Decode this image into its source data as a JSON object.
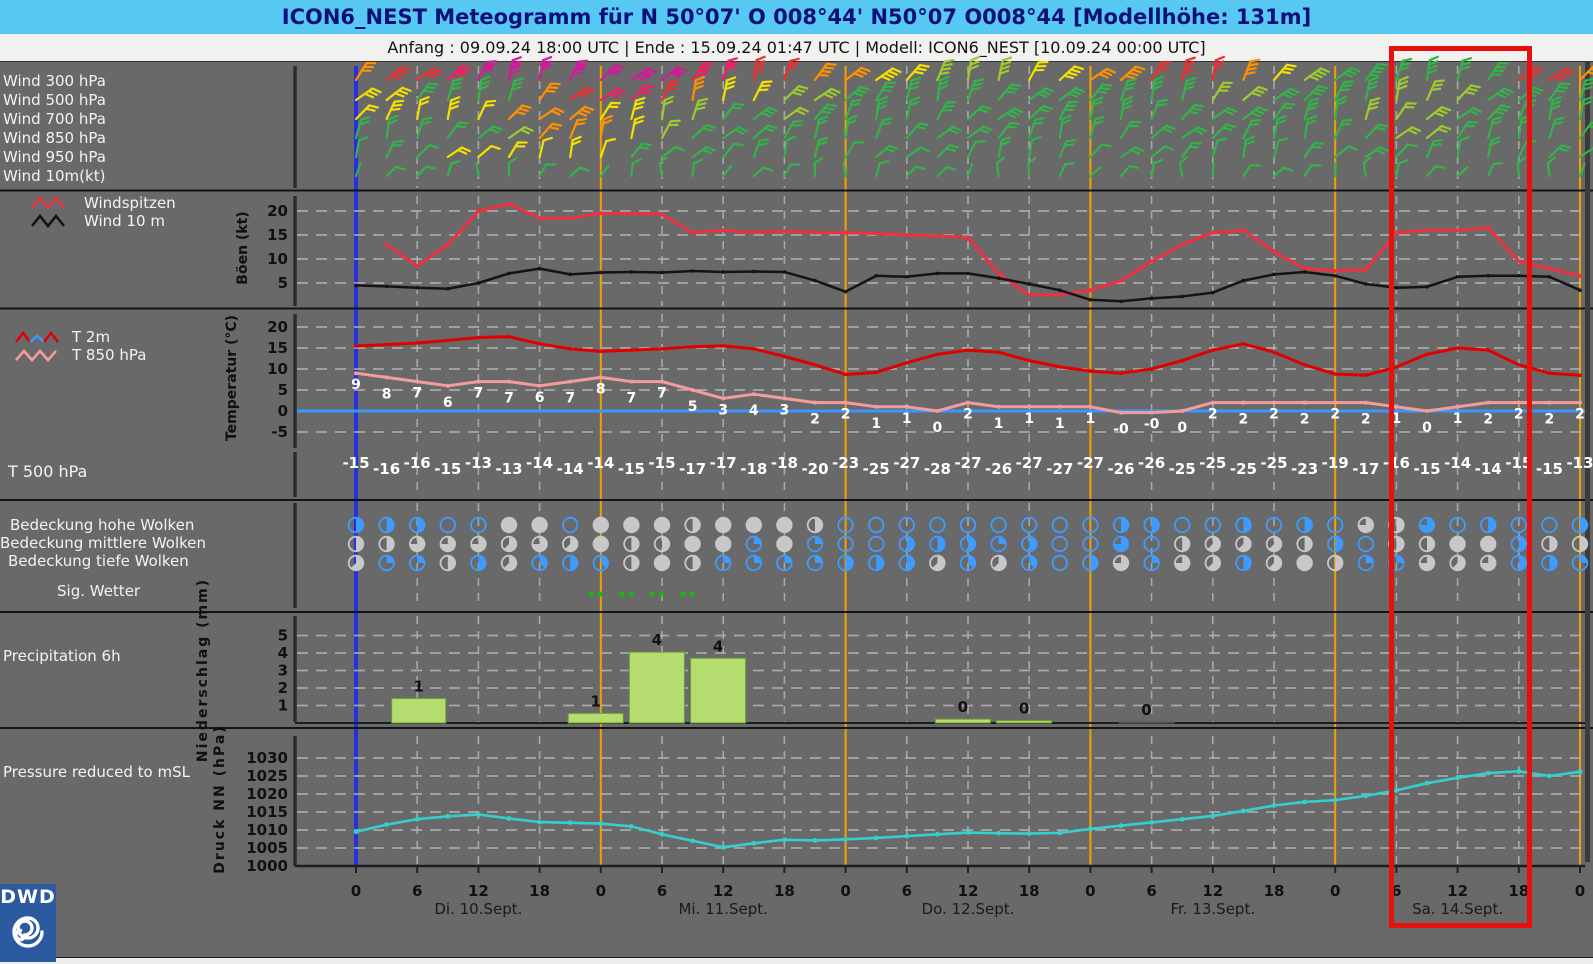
{
  "title": "ICON6_NEST Meteogramm für N 50°07' O 008°44' N50°07 O008°44   [Modellhöhe: 131m]",
  "subtitle": "Anfang : 09.09.24 18:00 UTC | Ende : 15.09.24 01:47 UTC | Modell: ICON6_NEST [10.09.24 00:00 UTC]",
  "panels": {
    "wind_rows": [
      "Wind 300 hPa",
      "Wind 500 hPa",
      "Wind 700 hPa",
      "Wind 850 hPa",
      "Wind 950 hPa",
      "Wind 10m(kt)"
    ],
    "gust_legend": {
      "windspitzen": "Windspitzen",
      "wind10m": "Wind 10 m"
    },
    "temp_legend": {
      "t2m": "T 2m",
      "t850": "T 850 hPa"
    },
    "t500_label": "T 500 hPa",
    "cloud_labels": [
      "Bedeckung hohe Wolken",
      "Bedeckung mittlere Wolken",
      "Bedeckung tiefe Wolken"
    ],
    "sig_label": "Sig. Wetter",
    "precip_label": "Precipitation 6h",
    "pressure_label": "Pressure reduced to mSL",
    "axis_labels": {
      "gusts": "Böen (kt)",
      "temp": "Temperatur (°C)",
      "precip": "Niederschlag (mm)",
      "pressure": "Druck NN (hPa)"
    }
  },
  "footer": {
    "dwd": "DWD"
  },
  "colors": {
    "title_bg": "#56c8f2",
    "title_fg": "#0a1078",
    "panel_bg": "#696969",
    "grid": "#b4b4b4",
    "init_line_blue": "#2531e0",
    "day_line_orange": "#f5a000",
    "red_box": "#e90f0f",
    "gust_red": "#f03040",
    "wind10_black": "#141414",
    "t2m_red": "#e00000",
    "t850_pink": "#f49c9c",
    "zero_line_blue": "#3b97ff",
    "precip_green": "#b4dc6e",
    "pressure_cyan": "#35cfcf",
    "cloud_blue": "#3e9bff",
    "cloud_gray": "#c8c8c8",
    "sig_green": "#17b517",
    "dwd_blue": "#2b5aa0",
    "value_label_white": "#ffffff",
    "tick_black": "#111111"
  },
  "chart_data": [
    {
      "id": "wind_barbs",
      "type": "wind-barbs",
      "start_h": 0,
      "step_h": 3,
      "rows": [
        "300 hPa",
        "500 hPa",
        "700 hPa",
        "850 hPa",
        "950 hPa",
        "10 m"
      ],
      "palette": {
        "G": "#33b34a",
        "L": "#9ccb2e",
        "Y": "#f2e000",
        "O": "#ff9100",
        "R": "#ef2f2f",
        "C": "#ef2064",
        "M": "#d6189b"
      },
      "colors_by_row": [
        [
          "O",
          "R",
          "R",
          "C",
          "M",
          "M",
          "M",
          "M",
          "M",
          "M",
          "M",
          "C",
          "C",
          "R",
          "R",
          "O",
          "O",
          "Y",
          "Y",
          "L",
          "L",
          "L",
          "Y",
          "Y",
          "O",
          "O",
          "R",
          "R",
          "R",
          "O",
          "Y",
          "L",
          "G",
          "G",
          "G",
          "G",
          "G",
          "G",
          "R",
          "R",
          "O"
        ],
        [
          "Y",
          "Y",
          "G",
          "G",
          "G",
          "G",
          "O",
          "R",
          "C",
          "C",
          "R",
          "O",
          "Y",
          "Y",
          "L",
          "L",
          "G",
          "G",
          "G",
          "G",
          "G",
          "G",
          "G",
          "G",
          "G",
          "G",
          "G",
          "G",
          "L",
          "L",
          "G",
          "G",
          "G",
          "G",
          "L",
          "L",
          "L",
          "G",
          "G",
          "G",
          "G"
        ],
        [
          "Y",
          "Y",
          "Y",
          "Y",
          "Y",
          "O",
          "O",
          "O",
          "Y",
          "Y",
          "L",
          "L",
          "G",
          "G",
          "L",
          "G",
          "G",
          "G",
          "G",
          "G",
          "G",
          "G",
          "G",
          "G",
          "G",
          "G",
          "G",
          "G",
          "G",
          "G",
          "G",
          "G",
          "G",
          "L",
          "L",
          "L",
          "G",
          "G",
          "G",
          "G",
          "G"
        ],
        [
          "G",
          "G",
          "G",
          "G",
          "G",
          "L",
          "O",
          "O",
          "O",
          "Y",
          "L",
          "G",
          "G",
          "G",
          "G",
          "G",
          "G",
          "G",
          "G",
          "G",
          "G",
          "G",
          "G",
          "G",
          "G",
          "G",
          "G",
          "G",
          "G",
          "G",
          "G",
          "G",
          "G",
          "G",
          "L",
          "L",
          "G",
          "G",
          "G",
          "G",
          "G"
        ],
        [
          "G",
          "G",
          "G",
          "Y",
          "Y",
          "Y",
          "Y",
          "Y",
          "Y",
          "G",
          "G",
          "G",
          "G",
          "G",
          "G",
          "G",
          "G",
          "G",
          "G",
          "G",
          "G",
          "G",
          "G",
          "G",
          "G",
          "G",
          "G",
          "G",
          "G",
          "G",
          "G",
          "G",
          "G",
          "G",
          "G",
          "G",
          "G",
          "G",
          "G",
          "G",
          "G"
        ],
        [
          "G",
          "G",
          "G",
          "G",
          "G",
          "G",
          "G",
          "G",
          "G",
          "G",
          "G",
          "G",
          "G",
          "G",
          "G",
          "G",
          "G",
          "G",
          "G",
          "G",
          "G",
          "G",
          "G",
          "G",
          "G",
          "G",
          "G",
          "G",
          "G",
          "G",
          "G",
          "G",
          "G",
          "G",
          "G",
          "G",
          "G",
          "G",
          "G",
          "G",
          "G"
        ]
      ]
    },
    {
      "id": "gusts",
      "type": "line",
      "ylabel": "Böen (kt)",
      "ylim": [
        0,
        23
      ],
      "yticks": [
        20,
        15,
        10,
        5
      ],
      "start_h": 0,
      "step_h": 3,
      "series": [
        {
          "name": "Windspitzen",
          "color_key": "gust_red",
          "values": [
            null,
            13,
            8.5,
            13,
            20,
            21.5,
            18.5,
            18.5,
            19.5,
            19.5,
            19.3,
            15.5,
            16,
            15.5,
            15.8,
            15.5,
            15.5,
            15.3,
            15,
            14.8,
            14.5,
            7,
            2.5,
            2.5,
            3.5,
            5.5,
            9.5,
            13,
            15.5,
            16,
            11.5,
            8,
            7.5,
            7.8,
            15.5,
            16,
            16,
            16.5,
            9.5,
            8,
            6.5
          ]
        },
        {
          "name": "Wind 10 m",
          "color_key": "wind10_black",
          "values": [
            4.5,
            4.3,
            4,
            3.8,
            5,
            7,
            8,
            6.8,
            7.2,
            7.3,
            7.2,
            7.5,
            7.3,
            7.4,
            7.3,
            5.5,
            3.2,
            6.5,
            6.3,
            7,
            7,
            6,
            4.8,
            3.5,
            1.5,
            1.2,
            1.8,
            2.2,
            3,
            5.5,
            6.8,
            7.3,
            6.5,
            4.8,
            4,
            4.2,
            6.3,
            6.5,
            6.5,
            6.3,
            3.5
          ]
        }
      ]
    },
    {
      "id": "temperature",
      "type": "line",
      "ylabel": "Temperatur (°C)",
      "ylim": [
        -7,
        22
      ],
      "yticks": [
        20,
        15,
        10,
        5,
        0,
        -5
      ],
      "zero_line": 0,
      "start_h": 0,
      "step_h": 3,
      "series": [
        {
          "name": "T 2m",
          "color_key": "t2m_red",
          "values": [
            15.5,
            15.8,
            16.2,
            16.8,
            17.5,
            17.7,
            16,
            14.8,
            14.2,
            14.5,
            14.8,
            15.3,
            15.5,
            14.8,
            13,
            11,
            8.7,
            9.2,
            11.5,
            13.5,
            14.5,
            14,
            12,
            10.5,
            9.5,
            9,
            10,
            12,
            14.5,
            16,
            14,
            11,
            8.8,
            8.5,
            10.5,
            13.5,
            15,
            14.5,
            11,
            9,
            8.5
          ]
        },
        {
          "name": "T 850 hPa",
          "color_key": "t850_pink",
          "values": [
            9,
            8,
            7,
            6,
            7,
            7,
            6,
            7,
            8,
            7,
            7,
            5,
            3,
            4,
            3,
            2,
            2,
            1,
            1,
            0,
            2,
            1,
            1,
            1,
            1,
            -0.4,
            -0.4,
            0,
            2,
            2,
            2,
            2,
            2,
            2,
            1,
            0,
            1,
            2,
            2,
            2,
            2
          ],
          "labels": [
            "9",
            "8",
            "7",
            "6",
            "7",
            "7",
            "6",
            "7",
            "8",
            "7",
            "7",
            "5",
            "3",
            "4",
            "3",
            "2",
            "2",
            "1",
            "1",
            "0",
            "2",
            "1",
            "1",
            "1",
            "1",
            "-0",
            "-0",
            "0",
            "2",
            "2",
            "2",
            "2",
            "2",
            "2",
            "1",
            "0",
            "1",
            "2",
            "2",
            "2",
            "2"
          ]
        }
      ]
    },
    {
      "id": "t500_row",
      "type": "table",
      "label": "T 500 hPa",
      "start_h": 0,
      "step_h": 3,
      "values": [
        "-15",
        "-16",
        "-16",
        "-15",
        "-13",
        "-13",
        "-14",
        "-14",
        "-14",
        "-15",
        "-15",
        "-17",
        "-17",
        "-18",
        "-18",
        "-20",
        "-23",
        "-25",
        "-27",
        "-28",
        "-27",
        "-26",
        "-27",
        "-27",
        "-27",
        "-26",
        "-26",
        "-25",
        "-25",
        "-25",
        "-25",
        "-23",
        "-19",
        "-17",
        "-16",
        "-15",
        "-14",
        "-14",
        "-15",
        "-15",
        "-13"
      ]
    },
    {
      "id": "clouds",
      "type": "symbols",
      "start_h": 0,
      "step_h": 3,
      "rows": [
        "Bedeckung hohe Wolken",
        "Bedeckung mittlere Wolken",
        "Bedeckung tiefe Wolken"
      ],
      "cell_code": "letter b=blue-outline g=gray, digit = filled eighths (8=full)",
      "cells": [
        [
          "b4",
          "b4",
          "b4",
          "b0",
          "b0",
          "g8",
          "g8",
          "b0",
          "g8",
          "g8",
          "g8",
          "g4",
          "g8",
          "g8",
          "g8",
          "g4",
          "b0",
          "b0",
          "b0",
          "b0",
          "b0",
          "b0",
          "b0",
          "b0",
          "b0",
          "b4",
          "b4",
          "b0",
          "b0",
          "b4",
          "b0",
          "b4",
          "b0",
          "g6",
          "g4",
          "b6",
          "b0",
          "b4",
          "b0",
          "b0",
          "b4"
        ],
        [
          "g4",
          "g4",
          "g6",
          "g6",
          "g6",
          "g5",
          "g6",
          "g5",
          "g8",
          "g4",
          "g4",
          "g8",
          "g8",
          "b2",
          "g8",
          "b2",
          "b0",
          "b0",
          "b4",
          "b4",
          "b4",
          "b2",
          "b4",
          "b0",
          "b0",
          "b6",
          "b0",
          "g4",
          "g5",
          "g5",
          "g5",
          "g4",
          "b4",
          "b0",
          "g4",
          "g4",
          "g8",
          "g8",
          "b4",
          "g4",
          "g4"
        ],
        [
          "g5",
          "b2",
          "b2",
          "g4",
          "b4",
          "g5",
          "b3",
          "b4",
          "b3",
          "g4",
          "g8",
          "g4",
          "b2",
          "b2",
          "b2",
          "b2",
          "b4",
          "b4",
          "b4",
          "g5",
          "b3",
          "g5",
          "b3",
          "b0",
          "b4",
          "g6",
          "b2",
          "g6",
          "g5",
          "b4",
          "g5",
          "g8",
          "g4",
          "b2",
          "b2",
          "g6",
          "g5",
          "g6",
          "b4",
          "b4",
          "b2"
        ]
      ]
    },
    {
      "id": "sig_weather",
      "type": "symbols",
      "label": "Sig. Wetter",
      "dot_pair_hours": [
        23.5,
        26.5,
        29.5,
        32.5
      ]
    },
    {
      "id": "precip6h",
      "type": "bar",
      "ylabel": "Niederschlag (mm)",
      "ylim": [
        0,
        5.8
      ],
      "yticks": [
        5,
        4,
        3,
        2,
        1
      ],
      "bars": [
        {
          "from_h": 3.5,
          "to_h": 8.8,
          "mm": 1.4,
          "label": "1"
        },
        {
          "from_h": 20.8,
          "to_h": 26.2,
          "mm": 0.55,
          "label": "1"
        },
        {
          "from_h": 26.8,
          "to_h": 32.2,
          "mm": 4.05,
          "label": "4"
        },
        {
          "from_h": 32.8,
          "to_h": 38.2,
          "mm": 3.7,
          "label": "4"
        },
        {
          "from_h": 56.8,
          "to_h": 62.2,
          "mm": 0.22,
          "label": "0"
        },
        {
          "from_h": 62.8,
          "to_h": 68.2,
          "mm": 0.14,
          "label": "0"
        },
        {
          "from_h": 74.8,
          "to_h": 80.2,
          "mm": 0.06,
          "label": "0",
          "muted": true
        }
      ]
    },
    {
      "id": "pressure",
      "type": "line",
      "ylabel": "Druck NN (hPa)",
      "ylim": [
        1000,
        1032
      ],
      "yticks": [
        1030,
        1025,
        1020,
        1015,
        1010,
        1005,
        1000
      ],
      "start_h": 0,
      "step_h": 3,
      "series": [
        {
          "name": "Pressure reduced to mSL",
          "color_key": "pressure_cyan",
          "values": [
            1009.5,
            1011.5,
            1013,
            1013.8,
            1014.3,
            1013.2,
            1012.2,
            1012,
            1011.8,
            1011,
            1008.8,
            1007,
            1005.2,
            1006.3,
            1007.3,
            1007.1,
            1007.4,
            1007.8,
            1008.3,
            1008.8,
            1009.3,
            1009.1,
            1009,
            1009.2,
            1010.3,
            1011.2,
            1012.1,
            1013,
            1013.9,
            1015.3,
            1016.8,
            1017.8,
            1018.3,
            1019.5,
            1021,
            1023,
            1024.5,
            1025.8,
            1026.3,
            1025,
            1026.2
          ]
        }
      ]
    },
    {
      "id": "time_axis",
      "hours": [
        0,
        6,
        12,
        18,
        24,
        30,
        36,
        42,
        48,
        54,
        60,
        66,
        72,
        78,
        84,
        90,
        96,
        102,
        108,
        114,
        120
      ],
      "hour_labels": [
        "0",
        "6",
        "12",
        "18",
        "0",
        "6",
        "12",
        "18",
        "0",
        "6",
        "12",
        "18",
        "0",
        "6",
        "12",
        "18",
        "0",
        "6",
        "12",
        "18",
        "0"
      ],
      "dates": [
        {
          "label": "Di. 10.Sept.",
          "h": 12
        },
        {
          "label": "Mi. 11.Sept.",
          "h": 36
        },
        {
          "label": "Do. 12.Sept.",
          "h": 60
        },
        {
          "label": "Fr. 13.Sept.",
          "h": 84
        },
        {
          "label": "Sa. 14.Sept.",
          "h": 108
        }
      ],
      "day_line_hours": [
        24,
        48,
        72,
        96,
        120
      ],
      "init_line_h": 0
    }
  ]
}
